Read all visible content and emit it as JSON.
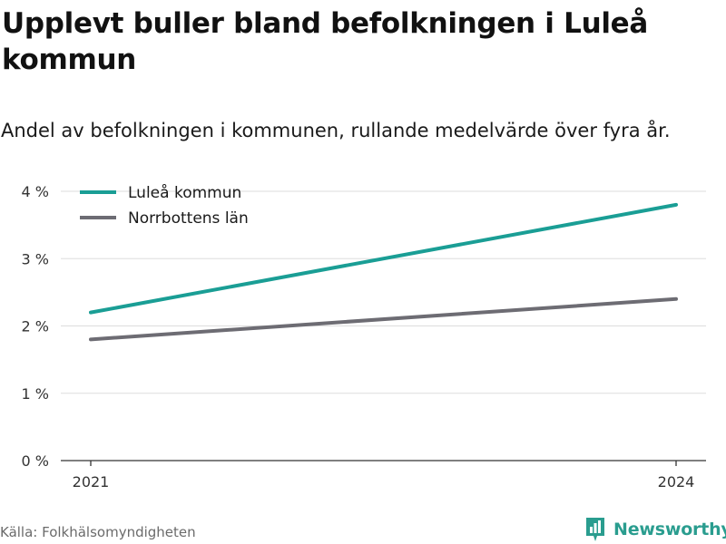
{
  "title": "Upplevt buller bland befolkningen i Luleå kommun",
  "subtitle": "Andel av befolkningen i kommunen, rullande medelvärde över fyra år.",
  "source": "Källa: Folkhälsomyndigheten",
  "brand": "Newsworthy",
  "colors": {
    "lulea": "#1a9e95",
    "norrbotten": "#6d6c73",
    "brand": "#2a9d8f",
    "grid": "#dddddd",
    "axis": "#333333"
  },
  "chart_data": {
    "type": "line",
    "x": [
      "2021",
      "2024"
    ],
    "series": [
      {
        "name": "Luleå kommun",
        "values": [
          2.2,
          3.8
        ]
      },
      {
        "name": "Norrbottens län",
        "values": [
          1.8,
          2.4
        ]
      }
    ],
    "yticks": [
      0,
      1,
      2,
      3,
      4
    ],
    "ytick_labels": [
      "0 %",
      "1 %",
      "2 %",
      "3 %",
      "4 %"
    ],
    "xtick_labels": [
      "2021",
      "2024"
    ],
    "ylim": [
      0,
      4
    ],
    "grid": true,
    "legend": "top-left",
    "xlabel": "",
    "ylabel": ""
  }
}
